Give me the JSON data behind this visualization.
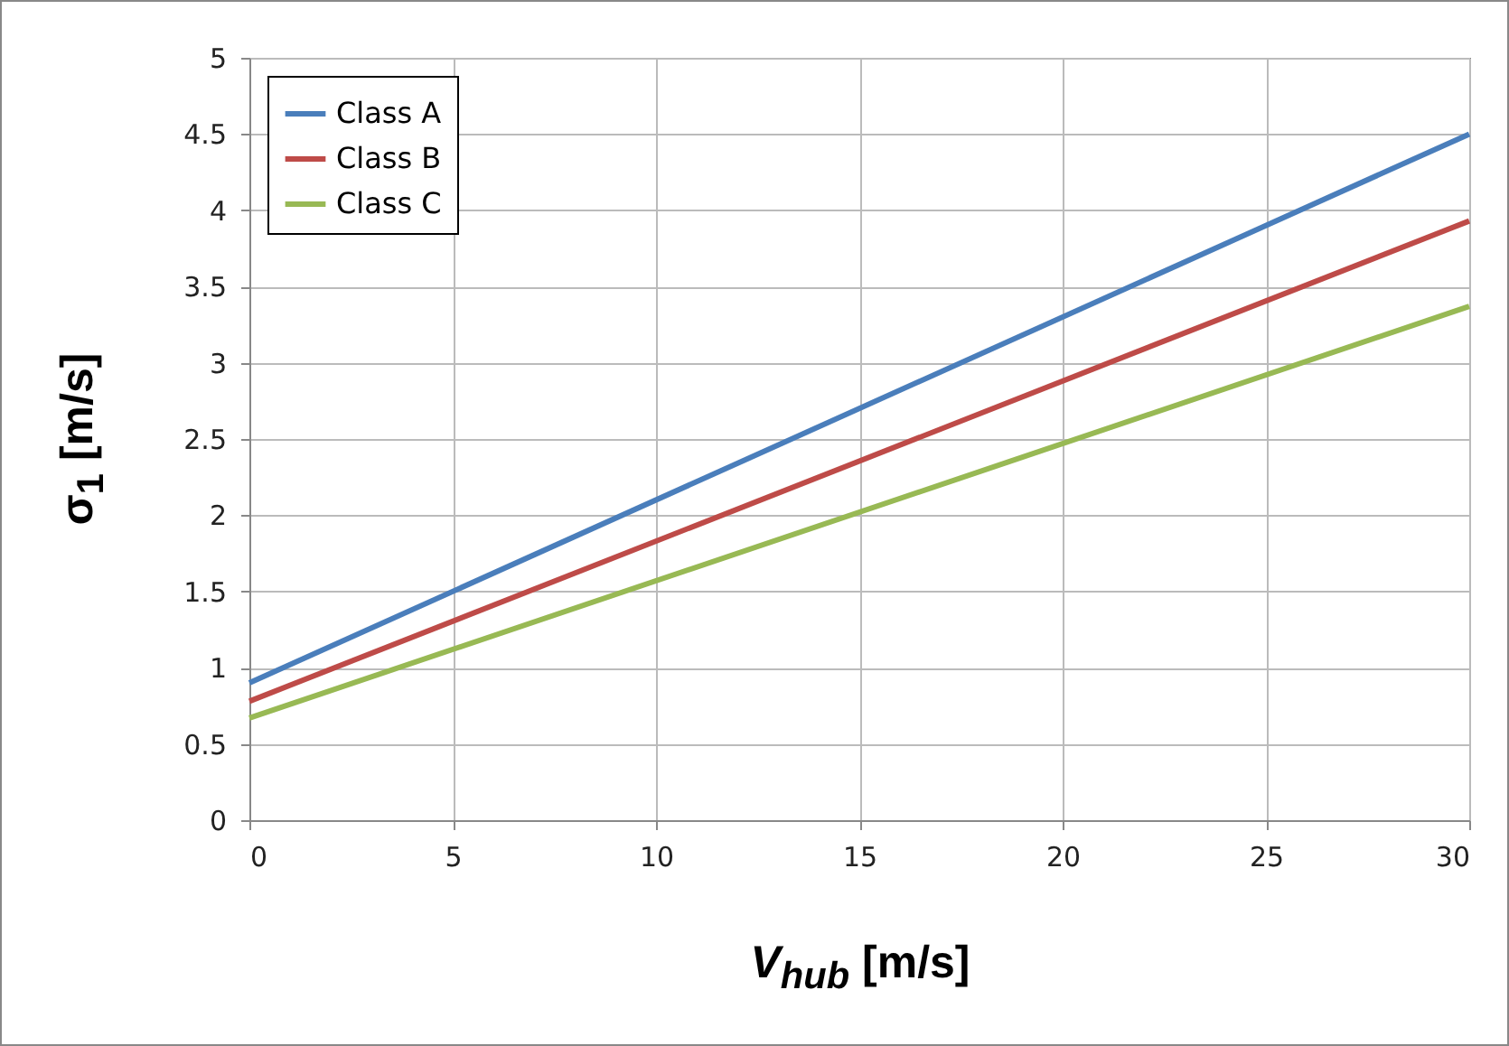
{
  "chart_data": {
    "type": "line",
    "xlabel": "V$_{hub}$ [m/s]",
    "ylabel": "σ$_{1}$ [m/s]",
    "x": [
      0,
      30
    ],
    "series": [
      {
        "name": "Class A",
        "color": "#4a7ebb",
        "values": [
          0.9,
          4.5
        ]
      },
      {
        "name": "Class B",
        "color": "#be4b48",
        "values": [
          0.78,
          3.93
        ]
      },
      {
        "name": "Class C",
        "color": "#98b954",
        "values": [
          0.67,
          3.37
        ]
      }
    ],
    "xlim": [
      0,
      30
    ],
    "xticks": [
      0,
      5,
      10,
      15,
      20,
      25,
      30
    ],
    "ylim": [
      0,
      5
    ],
    "yticks": [
      0,
      0.5,
      1,
      1.5,
      2,
      2.5,
      3,
      3.5,
      4,
      4.5,
      5
    ],
    "grid": true,
    "legend": "top left",
    "marker": "none",
    "line_style": "solid"
  }
}
